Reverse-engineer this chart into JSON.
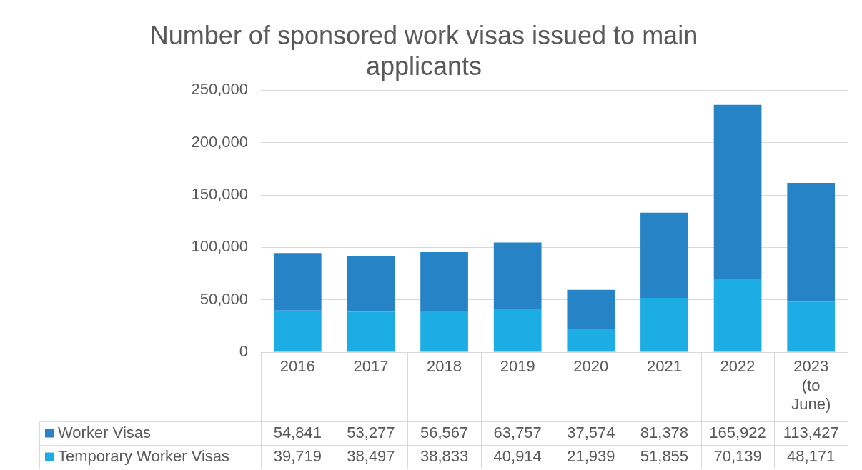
{
  "chart_data": {
    "type": "bar",
    "title": "Number of sponsored work visas issued to main applicants",
    "categories": [
      "2016",
      "2017",
      "2018",
      "2019",
      "2020",
      "2021",
      "2022",
      "2023 (to June)"
    ],
    "stacked": true,
    "series": [
      {
        "name": "Temporary Worker Visas",
        "color": "#1cade4",
        "values": [
          39719,
          38497,
          38833,
          40914,
          21939,
          51855,
          70139,
          48171
        ],
        "value_labels": [
          "39,719",
          "38,497",
          "38,833",
          "40,914",
          "21,939",
          "51,855",
          "70,139",
          "48,171"
        ]
      },
      {
        "name": "Worker Visas",
        "color": "#2683c6",
        "values": [
          54841,
          53277,
          56567,
          63757,
          37574,
          81378,
          165922,
          113427
        ],
        "value_labels": [
          "54,841",
          "53,277",
          "56,567",
          "63,757",
          "37,574",
          "81,378",
          "165,922",
          "113,427"
        ]
      }
    ],
    "ylim": [
      0,
      250000
    ],
    "yticks": [
      {
        "value": 0,
        "label": "0"
      },
      {
        "value": 50000,
        "label": "50,000"
      },
      {
        "value": 100000,
        "label": "100,000"
      },
      {
        "value": 150000,
        "label": "150,000"
      },
      {
        "value": 200000,
        "label": "200,000"
      },
      {
        "value": 250000,
        "label": "250,000"
      }
    ],
    "grid": "y",
    "legend": "bottom"
  }
}
